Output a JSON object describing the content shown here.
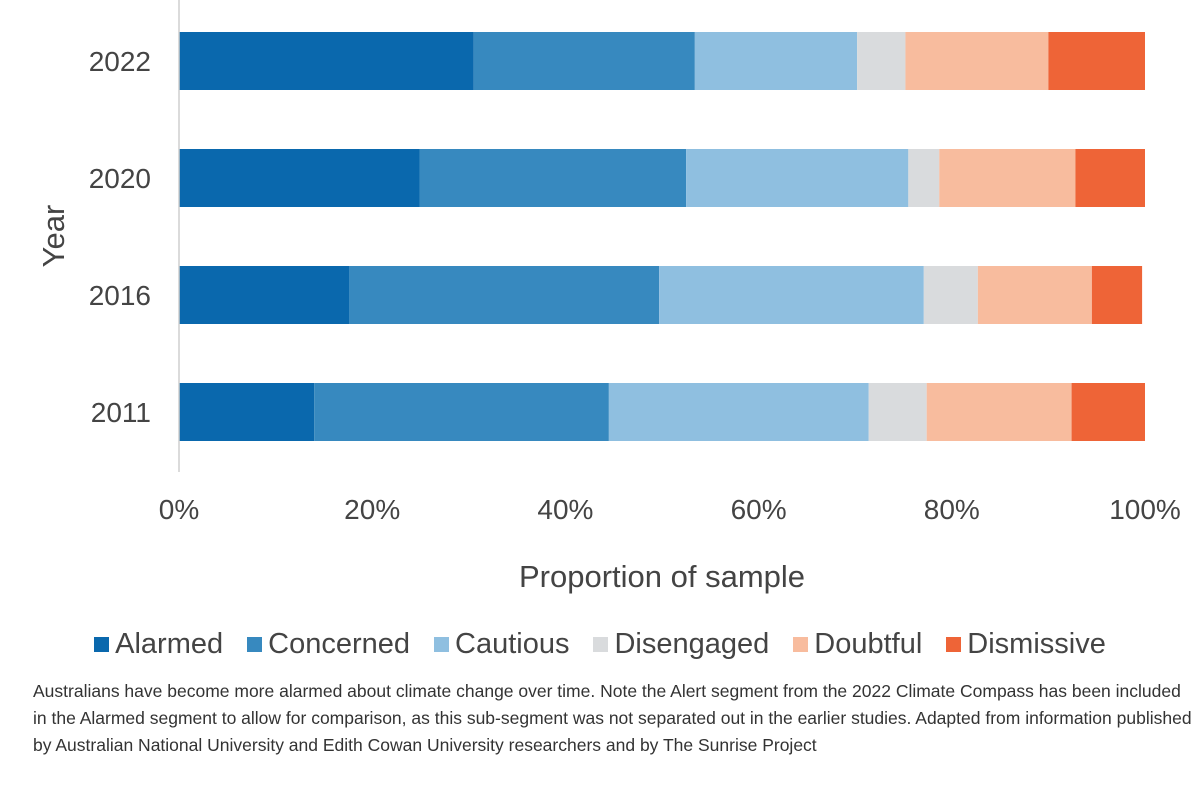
{
  "chart_data": {
    "type": "bar",
    "orientation": "horizontal",
    "stacked": true,
    "categories": [
      "2022",
      "2020",
      "2016",
      "2011"
    ],
    "series": [
      {
        "name": "Alarmed",
        "color": "#0a68ad",
        "values": [
          30.5,
          24.9,
          17.6,
          14.0
        ]
      },
      {
        "name": "Concerned",
        "color": "#3789bf",
        "values": [
          22.9,
          27.6,
          32.1,
          30.5
        ]
      },
      {
        "name": "Cautious",
        "color": "#8fbfe0",
        "values": [
          16.8,
          23.0,
          27.4,
          26.9
        ]
      },
      {
        "name": "Disengaged",
        "color": "#d9dbdd",
        "values": [
          5.0,
          3.2,
          5.6,
          6.0
        ]
      },
      {
        "name": "Doubtful",
        "color": "#f8bc9e",
        "values": [
          14.8,
          14.1,
          11.8,
          15.0
        ]
      },
      {
        "name": "Dismissive",
        "color": "#ee6437",
        "values": [
          10.0,
          7.2,
          5.2,
          7.6
        ]
      }
    ],
    "xlabel": "Proportion of sample",
    "ylabel": "Year",
    "xlim": [
      0,
      100
    ],
    "xticks": [
      "0%",
      "20%",
      "40%",
      "60%",
      "80%",
      "100%"
    ],
    "legend_position": "bottom"
  },
  "caption": "Australians have become more alarmed about climate change over time. Note the Alert segment from the 2022 Climate Compass has been included in the Alarmed segment to allow for comparison, as this sub-segment was not separated out in the earlier studies. Adapted from information published by Australian National University and Edith Cowan University researchers and by The Sunrise Project"
}
